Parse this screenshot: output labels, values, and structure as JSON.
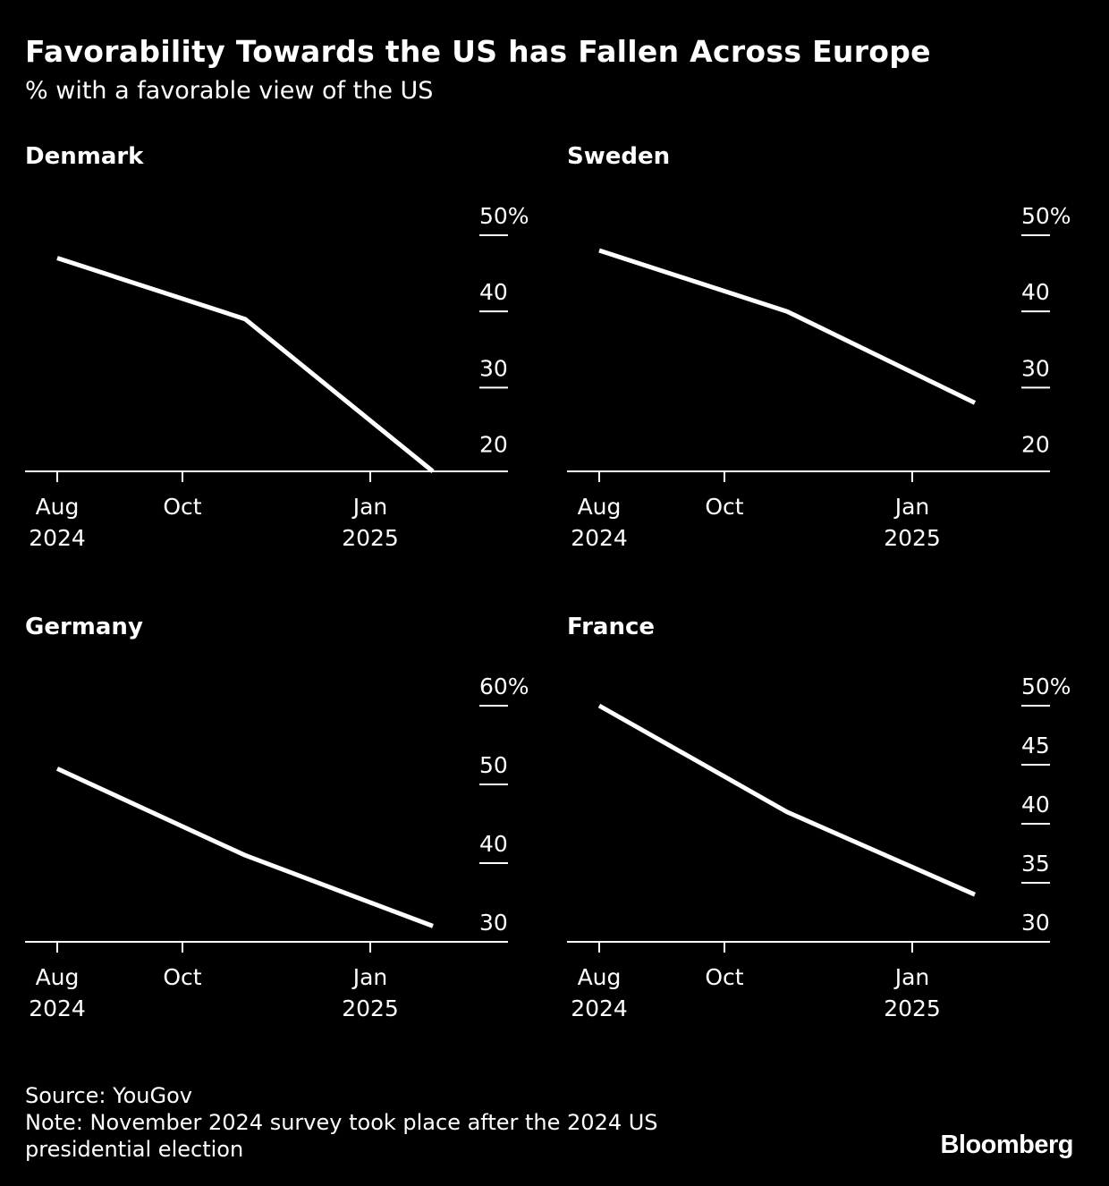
{
  "header": {
    "title": "Favorability Towards the US has Fallen Across Europe",
    "subtitle": "% with a favorable view of the US"
  },
  "colors": {
    "background": "#000000",
    "line": "#ffffff",
    "text": "#ffffff"
  },
  "chart_data": [
    {
      "type": "line",
      "title": "Denmark",
      "x": [
        "2024-08",
        "2024-11",
        "2025-02"
      ],
      "series": [
        {
          "values": [
            47,
            39,
            19
          ]
        }
      ],
      "ylim": [
        19,
        50
      ],
      "yticks": [
        20,
        30,
        40,
        50
      ],
      "ytick_labels": [
        "20",
        "30",
        "40",
        "50%"
      ],
      "xticks": [
        {
          "line1": "Aug",
          "line2": "2024"
        },
        {
          "line1": "Oct",
          "line2": ""
        },
        {
          "line1": "Jan",
          "line2": "2025"
        }
      ],
      "grid": false
    },
    {
      "type": "line",
      "title": "Sweden",
      "x": [
        "2024-08",
        "2024-11",
        "2025-02"
      ],
      "series": [
        {
          "values": [
            48,
            40,
            28
          ]
        }
      ],
      "ylim": [
        19,
        50
      ],
      "yticks": [
        20,
        30,
        40,
        50
      ],
      "ytick_labels": [
        "20",
        "30",
        "40",
        "50%"
      ],
      "xticks": [
        {
          "line1": "Aug",
          "line2": "2024"
        },
        {
          "line1": "Oct",
          "line2": ""
        },
        {
          "line1": "Jan",
          "line2": "2025"
        }
      ],
      "grid": false
    },
    {
      "type": "line",
      "title": "Germany",
      "x": [
        "2024-08",
        "2024-11",
        "2025-02"
      ],
      "series": [
        {
          "values": [
            52,
            41,
            32
          ]
        }
      ],
      "ylim": [
        30,
        60
      ],
      "yticks": [
        30,
        40,
        50,
        60
      ],
      "ytick_labels": [
        "30",
        "40",
        "50",
        "60%"
      ],
      "xticks": [
        {
          "line1": "Aug",
          "line2": "2024"
        },
        {
          "line1": "Oct",
          "line2": ""
        },
        {
          "line1": "Jan",
          "line2": "2025"
        }
      ],
      "grid": false
    },
    {
      "type": "line",
      "title": "France",
      "x": [
        "2024-08",
        "2024-11",
        "2025-02"
      ],
      "series": [
        {
          "values": [
            50,
            41,
            34
          ]
        }
      ],
      "ylim": [
        30,
        50
      ],
      "yticks": [
        30,
        35,
        40,
        45,
        50
      ],
      "ytick_labels": [
        "30",
        "35",
        "40",
        "45",
        "50%"
      ],
      "xticks": [
        {
          "line1": "Aug",
          "line2": "2024"
        },
        {
          "line1": "Oct",
          "line2": ""
        },
        {
          "line1": "Jan",
          "line2": "2025"
        }
      ],
      "grid": false
    }
  ],
  "footer": {
    "source": "Source: YouGov",
    "note_line1": "Note: November 2024 survey took place after the 2024 US",
    "note_line2": "presidential election"
  },
  "brand": "Bloomberg"
}
